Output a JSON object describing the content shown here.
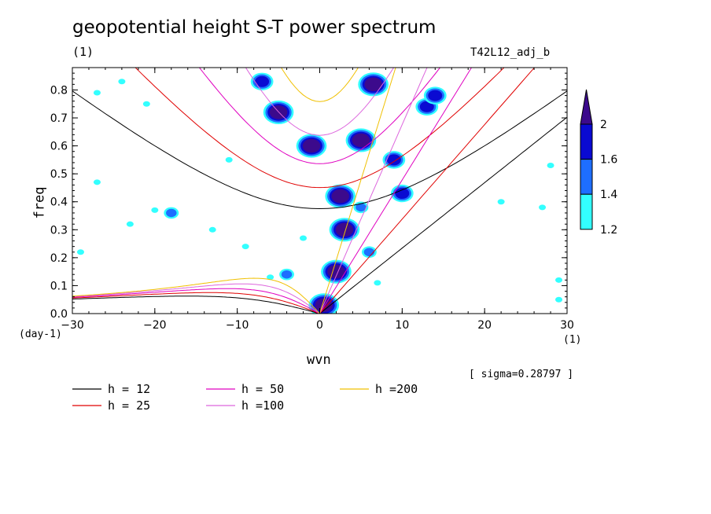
{
  "header": {
    "title": "geopotential height S-T power spectrum",
    "unit_title": "(1)",
    "run_label": "T42L12_adj_b",
    "sigma_note": "[ sigma=0.28797 ]"
  },
  "chart_data": {
    "type": "heatmap",
    "title": "geopotential height S-T power spectrum",
    "xlabel": "wvn",
    "ylabel": "freq",
    "x_unit": "(1)",
    "y_unit": "(day-1)",
    "xlim": [
      -30,
      30
    ],
    "ylim": [
      0,
      0.88
    ],
    "x_ticks": [
      -30,
      -20,
      -10,
      0,
      10,
      20,
      30
    ],
    "x_tick_labels": [
      "-30",
      "-20",
      "-10",
      "0",
      "10",
      "20",
      "30"
    ],
    "y_ticks": [
      0,
      0.1,
      0.2,
      0.3,
      0.4,
      0.5,
      0.6,
      0.7,
      0.8
    ],
    "y_tick_labels": [
      "0.0",
      "0.1",
      "0.2",
      "0.3",
      "0.4",
      "0.5",
      "0.6",
      "0.7",
      "0.8"
    ],
    "colorbar": {
      "levels": [
        1.2,
        1.4,
        1.6,
        2
      ],
      "labels": [
        "1.2",
        "1.4",
        "1.6",
        "2"
      ],
      "colors": [
        "#33ffff",
        "#1e6eff",
        "#0a0ad2",
        "#3c0a8c"
      ]
    },
    "dispersion_curves": [
      {
        "name": "h = 12",
        "equivalent_depth": 12,
        "color": "#000000"
      },
      {
        "name": "h = 25",
        "equivalent_depth": 25,
        "color": "#e00000"
      },
      {
        "name": "h = 50",
        "equivalent_depth": 50,
        "color": "#e000c0"
      },
      {
        "name": "h =100",
        "equivalent_depth": 100,
        "color": "#dd66dd"
      },
      {
        "name": "h =200",
        "equivalent_depth": 200,
        "color": "#f0c000"
      }
    ],
    "shaded_regions": [
      {
        "x": 0.5,
        "y": 0.03,
        "level": 2
      },
      {
        "x": 2,
        "y": 0.15,
        "level": 2
      },
      {
        "x": 3,
        "y": 0.3,
        "level": 2
      },
      {
        "x": 2.5,
        "y": 0.42,
        "level": 2
      },
      {
        "x": 5,
        "y": 0.62,
        "level": 2
      },
      {
        "x": 6.5,
        "y": 0.82,
        "level": 2
      },
      {
        "x": -5,
        "y": 0.72,
        "level": 2
      },
      {
        "x": -1,
        "y": 0.6,
        "level": 2
      },
      {
        "x": -7,
        "y": 0.83,
        "level": 1.6
      },
      {
        "x": 9,
        "y": 0.55,
        "level": 1.6
      },
      {
        "x": 10,
        "y": 0.43,
        "level": 1.6
      },
      {
        "x": 13,
        "y": 0.74,
        "level": 1.6
      },
      {
        "x": 14,
        "y": 0.78,
        "level": 1.6
      },
      {
        "x": -24,
        "y": 0.83,
        "level": 1.2
      },
      {
        "x": -27,
        "y": 0.79,
        "level": 1.2
      },
      {
        "x": -21,
        "y": 0.75,
        "level": 1.2
      },
      {
        "x": -18,
        "y": 0.36,
        "level": 1.4
      },
      {
        "x": -23,
        "y": 0.32,
        "level": 1.2
      },
      {
        "x": -13,
        "y": 0.3,
        "level": 1.2
      },
      {
        "x": -9,
        "y": 0.24,
        "level": 1.2
      },
      {
        "x": -20,
        "y": 0.37,
        "level": 1.2
      },
      {
        "x": -27,
        "y": 0.47,
        "level": 1.2
      },
      {
        "x": -29,
        "y": 0.22,
        "level": 1.2
      },
      {
        "x": -4,
        "y": 0.14,
        "level": 1.4
      },
      {
        "x": -6,
        "y": 0.13,
        "level": 1.2
      },
      {
        "x": -2,
        "y": 0.27,
        "level": 1.2
      },
      {
        "x": -11,
        "y": 0.55,
        "level": 1.2
      },
      {
        "x": 27,
        "y": 0.38,
        "level": 1.2
      },
      {
        "x": 29,
        "y": 0.12,
        "level": 1.2
      },
      {
        "x": 29,
        "y": 0.05,
        "level": 1.2
      },
      {
        "x": 28,
        "y": 0.53,
        "level": 1.2
      },
      {
        "x": 22,
        "y": 0.4,
        "level": 1.2
      },
      {
        "x": 5,
        "y": 0.38,
        "level": 1.4
      },
      {
        "x": 6,
        "y": 0.22,
        "level": 1.4
      },
      {
        "x": 7,
        "y": 0.11,
        "level": 1.2
      }
    ]
  },
  "legend": {
    "items": [
      {
        "label": "h = 12",
        "color": "#000000"
      },
      {
        "label": "h = 25",
        "color": "#e00000"
      },
      {
        "label": "h = 50",
        "color": "#e000c0"
      },
      {
        "label": "h =100",
        "color": "#dd66dd"
      },
      {
        "label": "h =200",
        "color": "#f0c000"
      }
    ]
  }
}
